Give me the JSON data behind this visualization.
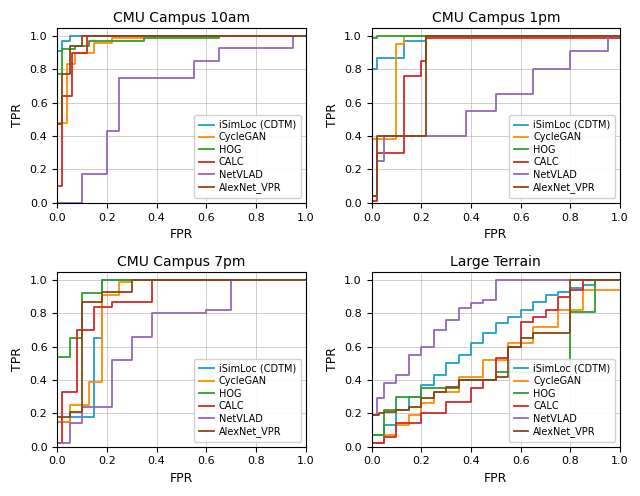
{
  "titles": [
    "CMU Campus 10am",
    "CMU Campus 1pm",
    "CMU Campus 7pm",
    "Large Terrain"
  ],
  "colors": {
    "iSimLoc": "#1f9dce",
    "CycleGAN": "#ff8c00",
    "HOG": "#2ca02c",
    "CALC": "#d62728",
    "NetVLAD": "#9467bd",
    "AlexNet_VPR": "#8B4513"
  },
  "legend_labels": [
    "iSimLoc (CDTM)",
    "CycleGAN",
    "HOG",
    "CALC",
    "NetVLAD",
    "AlexNet_VPR"
  ],
  "subplot_curves": {
    "10am": {
      "iSimLoc": {
        "fpr": [
          0.0,
          0.0,
          0.02,
          0.02,
          0.05,
          0.05,
          0.13,
          0.13,
          0.22,
          0.22,
          1.0
        ],
        "tpr": [
          0.0,
          0.91,
          0.91,
          0.97,
          0.97,
          1.0,
          1.0,
          1.0,
          1.0,
          1.0,
          1.0
        ]
      },
      "CycleGAN": {
        "fpr": [
          0.0,
          0.0,
          0.04,
          0.04,
          0.07,
          0.07,
          0.15,
          0.15,
          0.22,
          0.22,
          0.35,
          0.35,
          1.0
        ],
        "tpr": [
          0.0,
          0.48,
          0.48,
          0.83,
          0.83,
          0.9,
          0.9,
          0.96,
          0.96,
          0.99,
          0.99,
          1.0,
          1.0
        ]
      },
      "HOG": {
        "fpr": [
          0.0,
          0.0,
          0.02,
          0.02,
          0.07,
          0.07,
          0.13,
          0.13,
          0.35,
          0.35,
          0.65,
          0.65,
          1.0
        ],
        "tpr": [
          0.0,
          0.77,
          0.77,
          0.92,
          0.92,
          0.94,
          0.94,
          0.97,
          0.97,
          0.99,
          0.99,
          1.0,
          1.0
        ]
      },
      "CALC": {
        "fpr": [
          0.0,
          0.0,
          0.02,
          0.02,
          0.06,
          0.06,
          0.12,
          0.12,
          1.0
        ],
        "tpr": [
          0.0,
          0.1,
          0.1,
          0.64,
          0.64,
          0.9,
          0.9,
          1.0,
          1.0
        ]
      },
      "NetVLAD": {
        "fpr": [
          0.0,
          0.0,
          0.1,
          0.1,
          0.2,
          0.2,
          0.25,
          0.25,
          0.55,
          0.55,
          0.65,
          0.65,
          0.95,
          0.95,
          1.0
        ],
        "tpr": [
          0.0,
          0.0,
          0.0,
          0.17,
          0.17,
          0.43,
          0.43,
          0.75,
          0.75,
          0.85,
          0.85,
          0.93,
          0.93,
          1.0,
          1.0
        ]
      },
      "AlexNet_VPR": {
        "fpr": [
          0.0,
          0.0,
          0.02,
          0.02,
          0.05,
          0.05,
          0.1,
          0.1,
          1.0
        ],
        "tpr": [
          0.0,
          0.47,
          0.47,
          0.77,
          0.77,
          0.94,
          0.94,
          1.0,
          1.0
        ]
      }
    },
    "1pm": {
      "iSimLoc": {
        "fpr": [
          0.0,
          0.0,
          0.02,
          0.02,
          0.13,
          0.13,
          0.22,
          0.22,
          1.0
        ],
        "tpr": [
          0.0,
          0.8,
          0.8,
          0.87,
          0.87,
          0.97,
          0.97,
          1.0,
          1.0
        ]
      },
      "CycleGAN": {
        "fpr": [
          0.0,
          0.0,
          0.1,
          0.1,
          0.13,
          0.13,
          1.0
        ],
        "tpr": [
          0.0,
          0.38,
          0.38,
          0.95,
          0.95,
          1.0,
          1.0
        ]
      },
      "HOG": {
        "fpr": [
          0.0,
          0.0,
          0.02,
          0.02,
          1.0
        ],
        "tpr": [
          0.0,
          0.99,
          0.99,
          1.0,
          1.0
        ]
      },
      "CALC": {
        "fpr": [
          0.0,
          0.0,
          0.02,
          0.02,
          0.13,
          0.13,
          0.2,
          0.2,
          0.22,
          0.22,
          1.0
        ],
        "tpr": [
          0.0,
          0.01,
          0.01,
          0.3,
          0.3,
          0.76,
          0.76,
          0.85,
          0.85,
          0.99,
          0.99
        ]
      },
      "NetVLAD": {
        "fpr": [
          0.0,
          0.0,
          0.02,
          0.02,
          0.05,
          0.05,
          0.38,
          0.38,
          0.5,
          0.5,
          0.65,
          0.65,
          0.8,
          0.8,
          0.95,
          0.95,
          1.0
        ],
        "tpr": [
          0.0,
          0.04,
          0.04,
          0.25,
          0.25,
          0.4,
          0.4,
          0.55,
          0.55,
          0.65,
          0.65,
          0.8,
          0.8,
          0.91,
          0.91,
          1.0,
          1.0
        ]
      },
      "AlexNet_VPR": {
        "fpr": [
          0.0,
          0.0,
          0.02,
          0.02,
          0.22,
          0.22,
          1.0
        ],
        "tpr": [
          0.0,
          0.04,
          0.04,
          0.4,
          0.4,
          1.0,
          1.0
        ]
      }
    },
    "7pm": {
      "iSimLoc": {
        "fpr": [
          0.0,
          0.0,
          0.05,
          0.05,
          0.15,
          0.15,
          0.18,
          0.18,
          0.28,
          0.28,
          0.38,
          0.38,
          1.0
        ],
        "tpr": [
          0.0,
          0.15,
          0.15,
          0.18,
          0.18,
          0.65,
          0.65,
          1.0,
          1.0,
          1.0,
          1.0,
          1.0,
          1.0
        ]
      },
      "CycleGAN": {
        "fpr": [
          0.0,
          0.0,
          0.05,
          0.05,
          0.13,
          0.13,
          0.18,
          0.18,
          0.25,
          0.25,
          0.3,
          0.3,
          1.0
        ],
        "tpr": [
          0.0,
          0.15,
          0.15,
          0.25,
          0.25,
          0.39,
          0.39,
          0.91,
          0.91,
          0.99,
          0.99,
          1.0,
          1.0
        ]
      },
      "HOG": {
        "fpr": [
          0.0,
          0.0,
          0.05,
          0.05,
          0.1,
          0.1,
          0.18,
          0.18,
          0.3,
          0.3,
          1.0
        ],
        "tpr": [
          0.0,
          0.54,
          0.54,
          0.65,
          0.65,
          0.92,
          0.92,
          1.0,
          1.0,
          1.0,
          1.0
        ]
      },
      "CALC": {
        "fpr": [
          0.0,
          0.0,
          0.02,
          0.02,
          0.08,
          0.08,
          0.15,
          0.15,
          0.22,
          0.22,
          0.38,
          0.38,
          0.65,
          0.65,
          1.0
        ],
        "tpr": [
          0.0,
          0.02,
          0.02,
          0.33,
          0.33,
          0.7,
          0.7,
          0.84,
          0.84,
          0.87,
          0.87,
          1.0,
          1.0,
          1.0,
          1.0
        ]
      },
      "NetVLAD": {
        "fpr": [
          0.0,
          0.0,
          0.05,
          0.05,
          0.1,
          0.1,
          0.22,
          0.22,
          0.3,
          0.3,
          0.38,
          0.38,
          0.6,
          0.6,
          0.7,
          0.7,
          0.95,
          0.95,
          1.0
        ],
        "tpr": [
          0.0,
          0.02,
          0.02,
          0.14,
          0.14,
          0.24,
          0.24,
          0.52,
          0.52,
          0.66,
          0.66,
          0.8,
          0.8,
          0.82,
          0.82,
          1.0,
          1.0,
          1.0,
          1.0
        ]
      },
      "AlexNet_VPR": {
        "fpr": [
          0.0,
          0.0,
          0.05,
          0.05,
          0.1,
          0.1,
          0.18,
          0.18,
          0.3,
          0.3,
          1.0
        ],
        "tpr": [
          0.0,
          0.18,
          0.18,
          0.21,
          0.21,
          0.87,
          0.87,
          0.93,
          0.93,
          1.0,
          1.0
        ]
      }
    },
    "large": {
      "iSimLoc": {
        "fpr": [
          0.0,
          0.0,
          0.05,
          0.05,
          0.1,
          0.1,
          0.15,
          0.15,
          0.2,
          0.2,
          0.25,
          0.25,
          0.3,
          0.3,
          0.35,
          0.35,
          0.4,
          0.4,
          0.45,
          0.45,
          0.5,
          0.5,
          0.55,
          0.55,
          0.6,
          0.6,
          0.65,
          0.65,
          0.7,
          0.7,
          0.75,
          0.75,
          0.8,
          0.8,
          0.85,
          0.85,
          0.9,
          0.9,
          1.0
        ],
        "tpr": [
          0.0,
          0.07,
          0.07,
          0.13,
          0.13,
          0.22,
          0.22,
          0.3,
          0.3,
          0.37,
          0.37,
          0.43,
          0.43,
          0.5,
          0.5,
          0.55,
          0.55,
          0.62,
          0.62,
          0.68,
          0.68,
          0.74,
          0.74,
          0.78,
          0.78,
          0.82,
          0.82,
          0.87,
          0.87,
          0.91,
          0.91,
          0.93,
          0.93,
          0.95,
          0.95,
          0.97,
          0.97,
          1.0,
          1.0
        ]
      },
      "CycleGAN": {
        "fpr": [
          0.0,
          0.0,
          0.05,
          0.05,
          0.1,
          0.1,
          0.15,
          0.15,
          0.2,
          0.2,
          0.25,
          0.25,
          0.35,
          0.35,
          0.45,
          0.45,
          0.55,
          0.55,
          0.65,
          0.65,
          0.75,
          0.75,
          0.85,
          0.85,
          1.0
        ],
        "tpr": [
          0.0,
          0.02,
          0.02,
          0.07,
          0.07,
          0.13,
          0.13,
          0.19,
          0.19,
          0.26,
          0.26,
          0.33,
          0.33,
          0.42,
          0.42,
          0.52,
          0.52,
          0.62,
          0.62,
          0.72,
          0.72,
          0.82,
          0.82,
          0.94,
          0.94
        ]
      },
      "HOG": {
        "fpr": [
          0.0,
          0.0,
          0.05,
          0.05,
          0.1,
          0.1,
          0.2,
          0.2,
          0.35,
          0.35,
          0.5,
          0.5,
          0.65,
          0.65,
          0.8,
          0.8,
          0.9,
          0.9,
          1.0
        ],
        "tpr": [
          0.0,
          0.07,
          0.07,
          0.22,
          0.22,
          0.3,
          0.3,
          0.35,
          0.35,
          0.4,
          0.4,
          0.45,
          0.45,
          0.48,
          0.48,
          0.81,
          0.81,
          1.0,
          1.0
        ]
      },
      "CALC": {
        "fpr": [
          0.0,
          0.0,
          0.05,
          0.05,
          0.1,
          0.1,
          0.2,
          0.2,
          0.3,
          0.3,
          0.4,
          0.4,
          0.45,
          0.45,
          0.5,
          0.5,
          0.55,
          0.55,
          0.6,
          0.6,
          0.65,
          0.65,
          0.7,
          0.7,
          0.75,
          0.75,
          0.8,
          0.8,
          0.85,
          0.85,
          1.0
        ],
        "tpr": [
          0.0,
          0.02,
          0.02,
          0.06,
          0.06,
          0.14,
          0.14,
          0.2,
          0.2,
          0.27,
          0.27,
          0.35,
          0.35,
          0.4,
          0.4,
          0.53,
          0.53,
          0.6,
          0.6,
          0.75,
          0.75,
          0.78,
          0.78,
          0.82,
          0.82,
          0.9,
          0.9,
          0.94,
          0.94,
          1.0,
          1.0
        ]
      },
      "NetVLAD": {
        "fpr": [
          0.0,
          0.0,
          0.02,
          0.02,
          0.05,
          0.05,
          0.1,
          0.1,
          0.15,
          0.15,
          0.2,
          0.2,
          0.25,
          0.25,
          0.3,
          0.3,
          0.35,
          0.35,
          0.4,
          0.4,
          0.45,
          0.45,
          0.5,
          0.5,
          0.55,
          0.55,
          0.6,
          0.6,
          0.65,
          0.65,
          1.0
        ],
        "tpr": [
          0.0,
          0.19,
          0.19,
          0.29,
          0.29,
          0.38,
          0.38,
          0.43,
          0.43,
          0.55,
          0.55,
          0.6,
          0.6,
          0.7,
          0.7,
          0.76,
          0.76,
          0.83,
          0.83,
          0.86,
          0.86,
          0.88,
          0.88,
          1.0,
          1.0,
          1.0,
          1.0,
          1.0,
          1.0,
          1.0,
          1.0
        ]
      },
      "AlexNet_VPR": {
        "fpr": [
          0.0,
          0.0,
          0.03,
          0.03,
          0.05,
          0.05,
          0.1,
          0.1,
          0.15,
          0.15,
          0.2,
          0.2,
          0.25,
          0.25,
          0.3,
          0.3,
          0.35,
          0.35,
          0.4,
          0.4,
          0.45,
          0.45,
          0.5,
          0.5,
          0.55,
          0.55,
          0.6,
          0.6,
          0.65,
          0.65,
          0.8,
          0.8,
          1.0
        ],
        "tpr": [
          0.0,
          0.19,
          0.19,
          0.2,
          0.2,
          0.21,
          0.21,
          0.22,
          0.22,
          0.24,
          0.24,
          0.29,
          0.29,
          0.33,
          0.33,
          0.36,
          0.36,
          0.4,
          0.4,
          0.4,
          0.4,
          0.4,
          0.4,
          0.42,
          0.42,
          0.6,
          0.6,
          0.65,
          0.65,
          0.68,
          0.68,
          1.0,
          1.0
        ]
      }
    }
  },
  "figsize": [
    6.4,
    4.96
  ],
  "dpi": 100,
  "title_fontsize": 10,
  "axis_fontsize": 9,
  "tick_fontsize": 8,
  "legend_fontsize": 7,
  "linewidth": 1.3
}
